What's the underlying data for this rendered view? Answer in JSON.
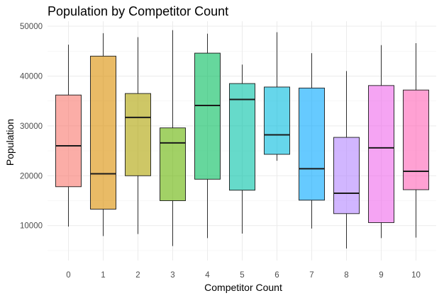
{
  "chart_data": {
    "type": "boxplot",
    "title": "Population by Competitor Count",
    "xlabel": "Competitor Count",
    "ylabel": "Population",
    "categories": [
      "0",
      "1",
      "2",
      "3",
      "4",
      "5",
      "6",
      "7",
      "8",
      "9",
      "10"
    ],
    "yticks": [
      10000,
      20000,
      30000,
      40000,
      50000
    ],
    "ytick_labels": [
      "10000",
      "20000",
      "30000",
      "40000",
      "50000"
    ],
    "ylim": [
      3000,
      51000
    ],
    "grid": true,
    "legend": "none",
    "boxes": [
      {
        "category": "0",
        "min": 9800,
        "q1": 17800,
        "median": 26000,
        "q3": 36200,
        "max": 46300,
        "color": "#F8766D"
      },
      {
        "category": "1",
        "min": 7900,
        "q1": 13300,
        "median": 20400,
        "q3": 44000,
        "max": 48600,
        "color": "#DB8E00"
      },
      {
        "category": "2",
        "min": 8300,
        "q1": 20000,
        "median": 31700,
        "q3": 36500,
        "max": 47800,
        "color": "#AEA200"
      },
      {
        "category": "3",
        "min": 5900,
        "q1": 15000,
        "median": 26600,
        "q3": 29600,
        "max": 49200,
        "color": "#64B200"
      },
      {
        "category": "4",
        "min": 7500,
        "q1": 19300,
        "median": 34100,
        "q3": 44600,
        "max": 48500,
        "color": "#00BD5C"
      },
      {
        "category": "5",
        "min": 8400,
        "q1": 17100,
        "median": 35300,
        "q3": 38500,
        "max": 42300,
        "color": "#00C1A7"
      },
      {
        "category": "6",
        "min": 23000,
        "q1": 24300,
        "median": 28200,
        "q3": 37800,
        "max": 48800,
        "color": "#00BADE"
      },
      {
        "category": "7",
        "min": 9400,
        "q1": 15100,
        "median": 21400,
        "q3": 37600,
        "max": 44600,
        "color": "#00A6FF"
      },
      {
        "category": "8",
        "min": 5400,
        "q1": 12400,
        "median": 16500,
        "q3": 27700,
        "max": 41000,
        "color": "#B385FF"
      },
      {
        "category": "9",
        "min": 7500,
        "q1": 10600,
        "median": 25600,
        "q3": 38100,
        "max": 46200,
        "color": "#EF67EB"
      },
      {
        "category": "10",
        "min": 7600,
        "q1": 17200,
        "median": 20900,
        "q3": 37200,
        "max": 46600,
        "color": "#FF63B6"
      }
    ]
  }
}
